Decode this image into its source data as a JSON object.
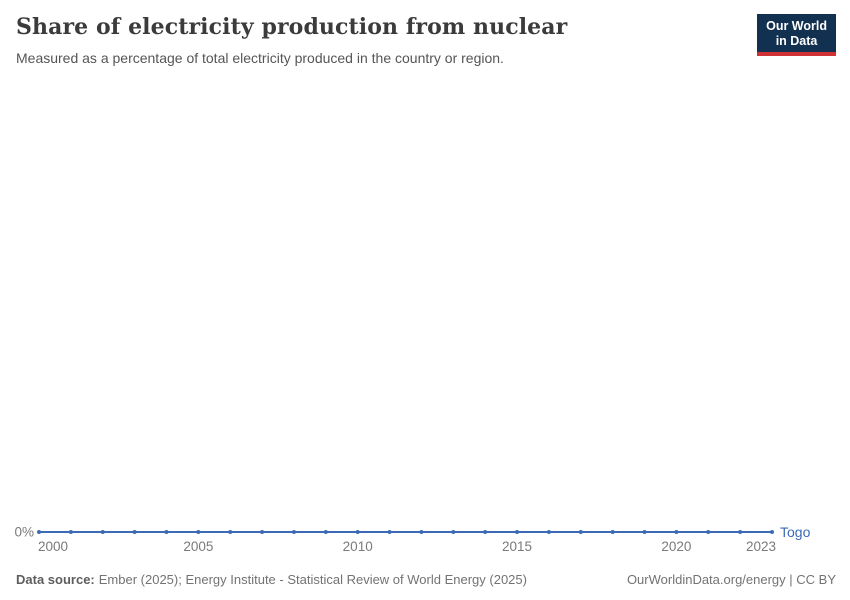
{
  "header": {
    "title": "Share of electricity production from nuclear",
    "subtitle": "Measured as a percentage of total electricity produced in the country or region.",
    "logo": {
      "line1": "Our World",
      "line2": "in Data"
    }
  },
  "chart_data": {
    "type": "line",
    "title": "Share of electricity production from nuclear",
    "xlabel": "",
    "ylabel": "",
    "xlim": [
      2000,
      2023
    ],
    "ylim": [
      0,
      0
    ],
    "grid": false,
    "legend_position": "end-of-line",
    "x_ticks": [
      2000,
      2005,
      2010,
      2015,
      2020,
      2023
    ],
    "y_tick_labels": [
      "0%"
    ],
    "series": [
      {
        "name": "Togo",
        "color": "#3c6bb5",
        "x": [
          2000,
          2001,
          2002,
          2003,
          2004,
          2005,
          2006,
          2007,
          2008,
          2009,
          2010,
          2011,
          2012,
          2013,
          2014,
          2015,
          2016,
          2017,
          2018,
          2019,
          2020,
          2021,
          2022,
          2023
        ],
        "values": [
          0,
          0,
          0,
          0,
          0,
          0,
          0,
          0,
          0,
          0,
          0,
          0,
          0,
          0,
          0,
          0,
          0,
          0,
          0,
          0,
          0,
          0,
          0,
          0
        ]
      }
    ]
  },
  "footer": {
    "source_label": "Data source:",
    "source_text": "Ember (2025); Energy Institute - Statistical Review of World Energy (2025)",
    "link_text": "OurWorldinData.org/energy | CC BY"
  },
  "colors": {
    "background": "#ffffff",
    "line": "#3c6bb5",
    "entity_label": "#3c6bb5",
    "title_text": "#3b3b3b",
    "subtitle_text": "#555555",
    "axis_text": "#7a7a7a",
    "footer_text": "#737373",
    "logo_bg": "#12304f",
    "logo_accent": "#cf3134"
  }
}
